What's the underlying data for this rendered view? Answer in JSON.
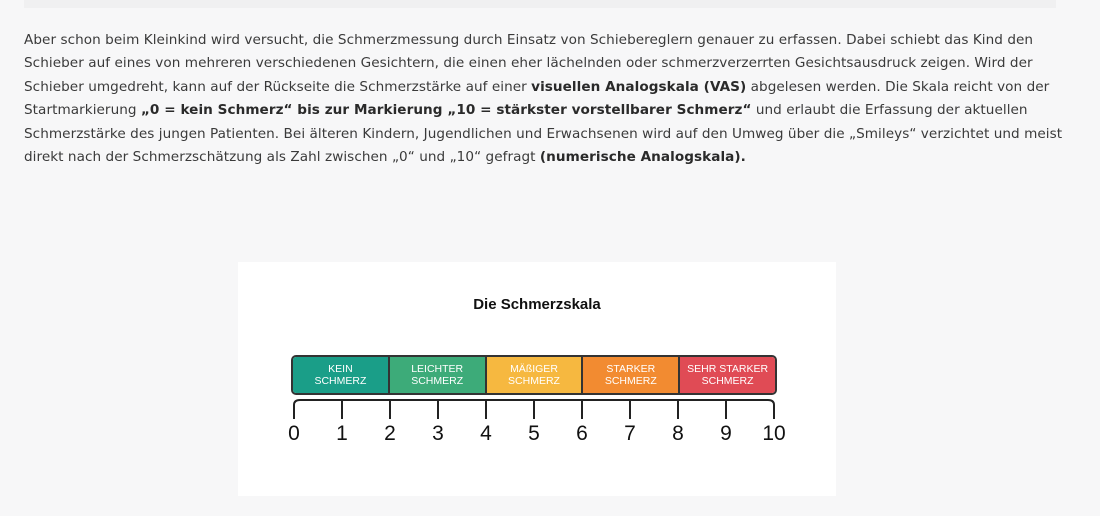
{
  "article": {
    "paragraph": [
      {
        "text": "Aber schon beim Kleinkind wird versucht, die Schmerzmessung durch Einsatz von Schiebereglern genauer zu erfassen. Dabei schiebt das Kind den Schieber auf eines von mehreren verschiedenen Gesichtern, die einen eher lächelnden oder schmerzverzerrten Gesichtsausdruck zeigen. Wird der Schieber umgedreht, kann auf der Rückseite die Schmerzstärke auf einer ",
        "bold": false
      },
      {
        "text": "visuellen Analogskala (VAS)",
        "bold": true
      },
      {
        "text": " abgelesen werden. Die Skala reicht von der Startmarkierung ",
        "bold": false
      },
      {
        "text": "„0 = kein Schmerz“ bis zur Markierung „10 = stärkster vorstellbarer Schmerz“",
        "bold": true
      },
      {
        "text": " und erlaubt die Erfassung der aktuellen Schmerzstärke des jungen Patienten. Bei älteren Kindern, Jugendlichen und Erwachsenen wird auf den Umweg über die „Smileys“ verzichtet und meist direkt nach der Schmerzschätzung als Zahl zwischen „0“ und „10“ gefragt ",
        "bold": false
      },
      {
        "text": "(numerische Analogskala).",
        "bold": true
      }
    ]
  },
  "figure": {
    "title": "Die Schmerzskala",
    "segments": [
      {
        "label": "KEIN\nSCHMERZ",
        "color": "#1a9e88"
      },
      {
        "label": "LEICHTER\nSCHMERZ",
        "color": "#3dab79"
      },
      {
        "label": "MÄßIGER\nSCHMERZ",
        "color": "#f6b840"
      },
      {
        "label": "STARKER\nSCHMERZ",
        "color": "#f28b31"
      },
      {
        "label": "SEHR STARKER\nSCHMERZ",
        "color": "#e04b55"
      }
    ],
    "ticks": [
      "0",
      "1",
      "2",
      "3",
      "4",
      "5",
      "6",
      "7",
      "8",
      "9",
      "10"
    ]
  }
}
